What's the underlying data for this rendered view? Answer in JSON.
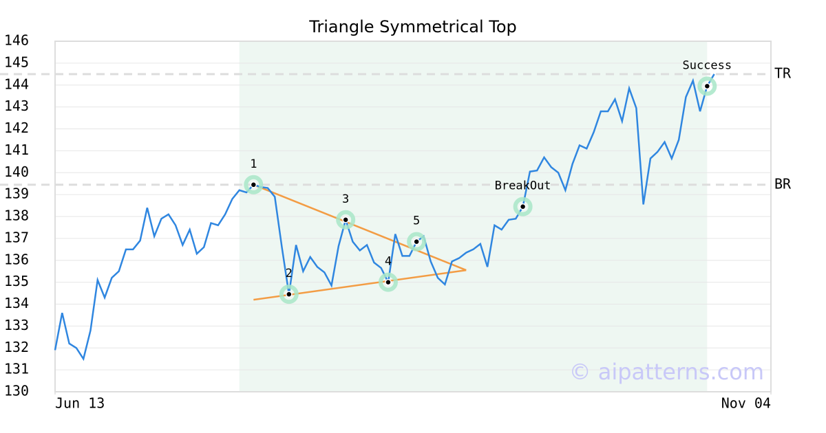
{
  "chart_data": {
    "type": "line",
    "title": "Triangle Symmetrical Top",
    "x": [
      0,
      1,
      2,
      3,
      4,
      5,
      6,
      7,
      8,
      9,
      10,
      11,
      12,
      13,
      14,
      15,
      16,
      17,
      18,
      19,
      20,
      21,
      22,
      23,
      24,
      25,
      26,
      27,
      28,
      29,
      30,
      31,
      32,
      33,
      34,
      35,
      36,
      37,
      38,
      39,
      40,
      41,
      42,
      43,
      44,
      45,
      46,
      47,
      48,
      49,
      50,
      51,
      52,
      53,
      54,
      55,
      56,
      57,
      58,
      59,
      60,
      61,
      62,
      63,
      64,
      65,
      66,
      67,
      68,
      69,
      70,
      71,
      72,
      73,
      74,
      75,
      76,
      77,
      78,
      79,
      80,
      81,
      82,
      83,
      84,
      85,
      86,
      87,
      88,
      89,
      90,
      91,
      92,
      93
    ],
    "series": [
      {
        "color": "#2f86e0",
        "values": [
          131.9,
          133.6,
          132.2,
          132.0,
          131.5,
          132.8,
          135.1,
          134.3,
          135.2,
          135.5,
          136.5,
          136.5,
          136.9,
          138.4,
          137.1,
          137.9,
          138.1,
          137.6,
          136.7,
          137.4,
          136.3,
          136.6,
          137.7,
          137.6,
          138.1,
          138.8,
          139.2,
          139.1,
          139.45,
          139.35,
          139.3,
          138.9,
          136.6,
          134.45,
          136.7,
          135.5,
          136.15,
          135.7,
          135.45,
          134.85,
          136.65,
          137.85,
          136.85,
          136.45,
          136.7,
          135.9,
          135.65,
          135.0,
          137.2,
          136.2,
          136.2,
          136.85,
          137.1,
          135.95,
          135.2,
          134.9,
          135.95,
          136.1,
          136.35,
          136.5,
          136.75,
          135.7,
          137.6,
          137.4,
          137.85,
          137.9,
          138.45,
          140.05,
          140.1,
          140.7,
          140.25,
          140.0,
          139.2,
          140.4,
          141.25,
          141.1,
          141.85,
          142.8,
          142.8,
          143.35,
          142.35,
          143.85,
          142.95,
          138.55,
          140.65,
          140.95,
          141.4,
          140.65,
          141.5,
          143.45,
          144.2,
          142.8,
          143.95,
          144.5
        ]
      }
    ],
    "xlim": [
      0,
      101
    ],
    "xticks": [
      {
        "value": 0,
        "label": "Jun 13"
      },
      {
        "value": 101,
        "label": "Nov 04"
      }
    ],
    "ylim": [
      130,
      146
    ],
    "yticks": [
      130,
      131,
      132,
      133,
      134,
      135,
      136,
      137,
      138,
      139,
      140,
      141,
      142,
      143,
      144,
      145,
      146
    ],
    "grid": true,
    "shaded_range": [
      26,
      92
    ],
    "reference_lines": [
      {
        "label": "TR",
        "value": 144.5
      },
      {
        "label": "BR",
        "value": 139.45
      }
    ],
    "triangle": {
      "color": "#f39c44",
      "lines": [
        [
          {
            "x": 28,
            "y": 139.45
          },
          {
            "x": 58,
            "y": 135.55
          }
        ],
        [
          {
            "x": 28,
            "y": 134.2
          },
          {
            "x": 58,
            "y": 135.55
          }
        ]
      ]
    },
    "annotations": [
      {
        "label": "1",
        "x": 28,
        "y": 139.45,
        "pos": "above"
      },
      {
        "label": "2",
        "x": 33,
        "y": 134.45,
        "pos": "above"
      },
      {
        "label": "3",
        "x": 41,
        "y": 137.85,
        "pos": "above"
      },
      {
        "label": "4",
        "x": 47,
        "y": 135.0,
        "pos": "above"
      },
      {
        "label": "5",
        "x": 51,
        "y": 136.85,
        "pos": "above"
      },
      {
        "label": "BreakOut",
        "x": 66,
        "y": 138.45,
        "pos": "above"
      },
      {
        "label": "Success",
        "x": 92,
        "y": 143.95,
        "pos": "above"
      }
    ],
    "watermark": "© aipatterns.com"
  }
}
